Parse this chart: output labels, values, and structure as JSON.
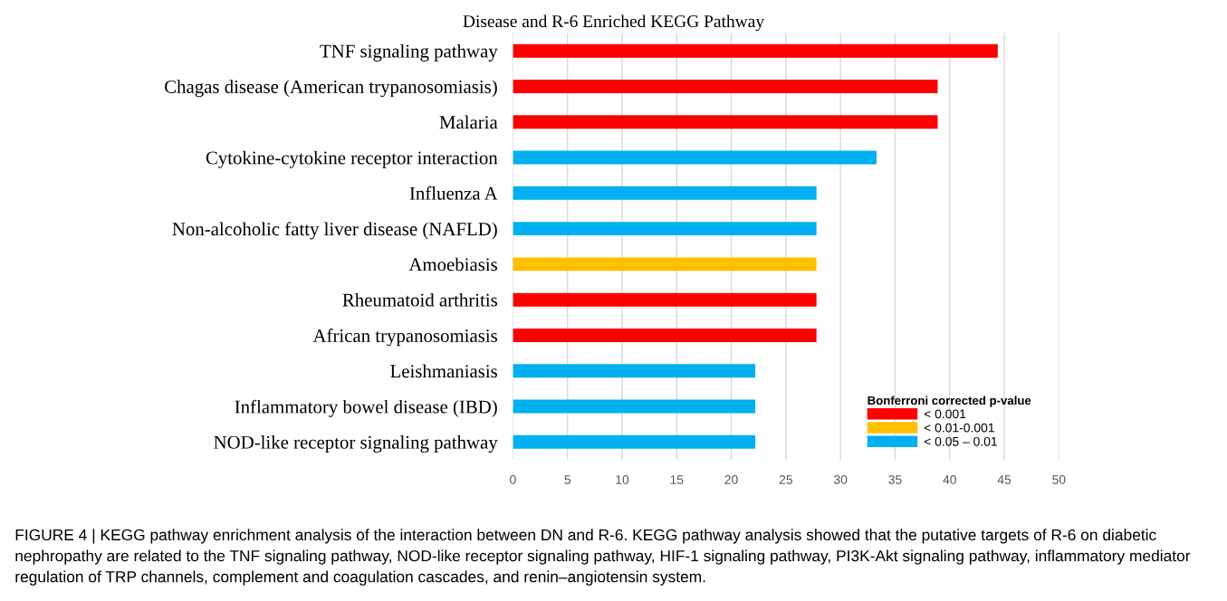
{
  "chart_data": {
    "type": "bar",
    "orientation": "horizontal",
    "title": "Disease and R-6 Enriched KEGG Pathway",
    "categories": [
      "TNF signaling pathway",
      "Chagas disease (American trypanosomiasis)",
      "Malaria",
      "Cytokine-cytokine receptor interaction",
      "Influenza A",
      "Non-alcoholic fatty liver disease (NAFLD)",
      "Amoebiasis",
      "Rheumatoid arthritis",
      "African trypanosomiasis",
      "Leishmaniasis",
      "Inflammatory bowel disease (IBD)",
      "NOD-like receptor signaling pathway"
    ],
    "series": [
      {
        "name": "< 0.001",
        "color": "#ff0000",
        "values": [
          44.4,
          38.9,
          38.9,
          null,
          null,
          null,
          null,
          27.8,
          27.8,
          null,
          null,
          null
        ]
      },
      {
        "name": "< 0.01-0.001",
        "color": "#ffc000",
        "values": [
          null,
          null,
          null,
          null,
          null,
          null,
          27.8,
          null,
          null,
          null,
          null,
          null
        ]
      },
      {
        "name": "< 0.05 – 0.01",
        "color": "#00b0f0",
        "values": [
          null,
          null,
          null,
          33.3,
          27.8,
          27.8,
          null,
          null,
          null,
          22.2,
          22.2,
          22.2
        ]
      }
    ],
    "legend_title": "Bonferroni corrected p-value",
    "legend": "bottom right",
    "xlim": [
      0,
      50
    ],
    "xticks": [
      0,
      5,
      10,
      15,
      20,
      25,
      30,
      35,
      40,
      45,
      50
    ],
    "grid": "x",
    "annotations": [
      "FIGURE 4 | KEGG pathway enrichment analysis of the interaction between DN and R-6. KEGG pathway analysis showed that the putative targets of R-6 on diabetic nephropathy are related to the TNF signaling pathway, NOD-like receptor signaling pathway, HIF-1 signaling pathway, PI3K-Akt signaling pathway, inflammatory mediator regulation of TRP channels, complement and coagulation cascades, and renin–angiotensin system."
    ]
  }
}
